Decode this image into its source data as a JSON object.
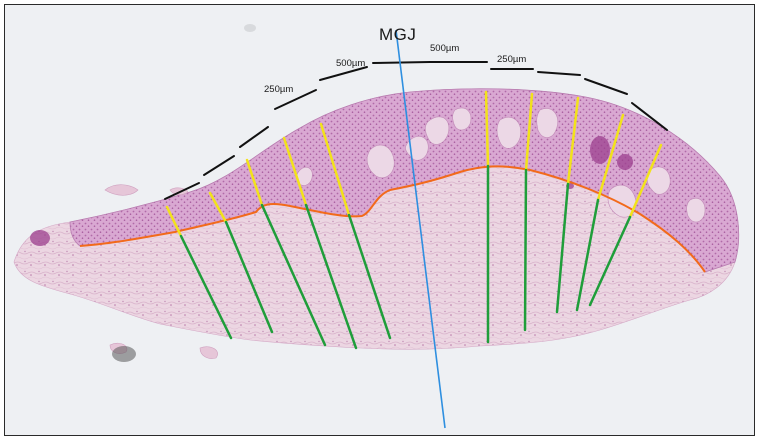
{
  "labels": {
    "mgj": "MGJ",
    "scale_left": "250µm",
    "scale_mid_left": "500µm",
    "scale_mid_right": "500µm",
    "scale_right": "250µm"
  },
  "colors": {
    "background": "#eef0f3",
    "stroma": "#e9cfdd",
    "epithelium": "#c98bc2",
    "epithelium_dark": "#b46aa8",
    "junction_line": "#f26a1b",
    "epithelial_thickness_line": "#f2e21b",
    "stromal_depth_line": "#1f9e3a",
    "mgj_line": "#2e8fe0",
    "scale_bar": "#111111"
  }
}
